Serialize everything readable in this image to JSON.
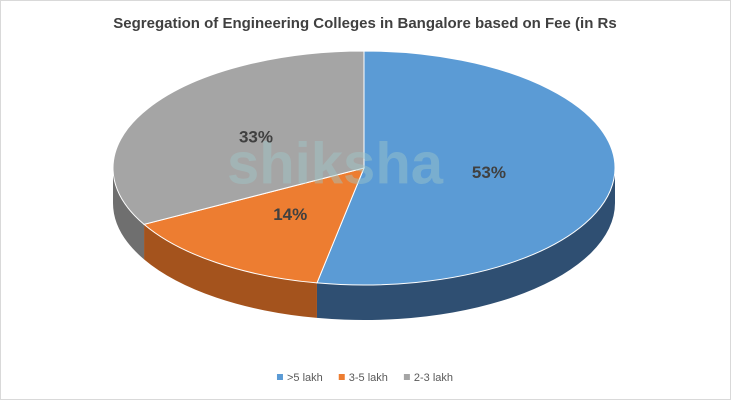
{
  "chart_data": {
    "type": "pie3d",
    "title": "Segregation of Engineering Colleges in Bangalore based on Fee (in Rs",
    "watermark": "shiksha",
    "categories": [
      ">5 lakh",
      "3-5 lakh",
      "2-3 lakh"
    ],
    "values": [
      53,
      14,
      33
    ],
    "value_labels": [
      "53%",
      "14%",
      "33%"
    ],
    "colors": [
      "#5b9bd5",
      "#ed7d31",
      "#a5a5a5"
    ],
    "side_colors": [
      "#2f4f72",
      "#a4531d",
      "#6f6f6f"
    ],
    "legend": "bottom"
  }
}
